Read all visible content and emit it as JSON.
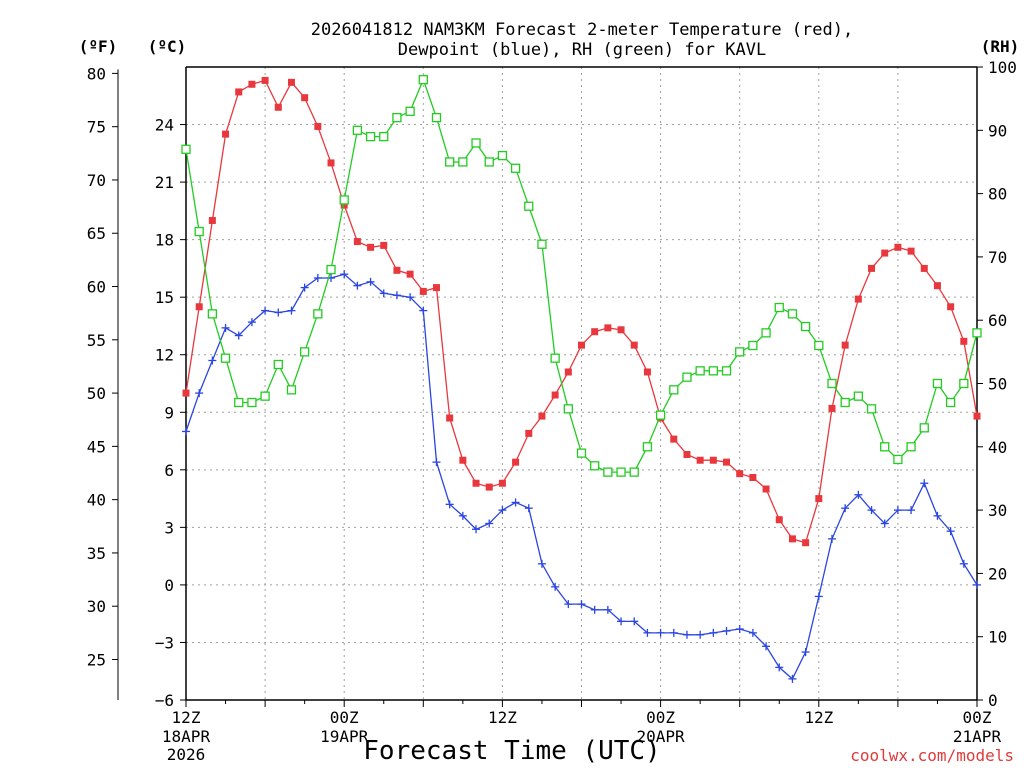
{
  "title_line1": "2026041812 NAM3KM Forecast 2-meter Temperature (red),",
  "title_line2": "Dewpoint (blue), RH (green) for KAVL",
  "unit_f": "(ºF)",
  "unit_c": "(ºC)",
  "unit_rh": "(RH)",
  "xlabel": "Forecast Time (UTC)",
  "credit": "coolwx.com/models",
  "colors": {
    "temperature": "#e8383d",
    "dewpoint": "#2b45e0",
    "rh": "#22cc22",
    "grid": "#a0a0a0"
  },
  "chart_data": {
    "type": "line",
    "x_hours_from_start": [
      0,
      1,
      2,
      3,
      4,
      5,
      6,
      7,
      8,
      9,
      10,
      11,
      12,
      13,
      14,
      15,
      16,
      17,
      18,
      19,
      20,
      21,
      22,
      23,
      24,
      25,
      26,
      27,
      28,
      29,
      30,
      31,
      32,
      33,
      34,
      35,
      36,
      37,
      38,
      39,
      40,
      41,
      42,
      43,
      44,
      45,
      46,
      47,
      48,
      49,
      50,
      51,
      52,
      53,
      54,
      55,
      56,
      57,
      58,
      59,
      60
    ],
    "xlim": [
      0,
      60
    ],
    "x_ticks": [
      {
        "hour": 0,
        "label": "12Z",
        "date": "18APR",
        "year": "2026"
      },
      {
        "hour": 12,
        "label": "00Z",
        "date": "19APR",
        "year": ""
      },
      {
        "hour": 24,
        "label": "12Z",
        "date": "",
        "year": ""
      },
      {
        "hour": 36,
        "label": "00Z",
        "date": "20APR",
        "year": ""
      },
      {
        "hour": 48,
        "label": "12Z",
        "date": "",
        "year": ""
      },
      {
        "hour": 60,
        "label": "00Z",
        "date": "21APR",
        "year": ""
      }
    ],
    "y_left_c": {
      "label": "ºC",
      "ylim": [
        -6,
        27
      ],
      "ticks": [
        -6,
        -3,
        0,
        3,
        6,
        9,
        12,
        15,
        18,
        21,
        24
      ]
    },
    "y_left_f": {
      "label": "ºF",
      "ticks": [
        25,
        30,
        35,
        40,
        45,
        50,
        55,
        60,
        65,
        70,
        75,
        80
      ]
    },
    "y_right_rh": {
      "label": "RH",
      "ylim": [
        0,
        100
      ],
      "ticks": [
        0,
        10,
        20,
        30,
        40,
        50,
        60,
        70,
        80,
        90,
        100
      ]
    },
    "series": [
      {
        "name": "2-meter Temperature",
        "units": "C",
        "color": "#e8383d",
        "marker": "filled-square",
        "values": [
          10.0,
          14.5,
          19.0,
          23.5,
          25.7,
          26.1,
          26.3,
          24.9,
          26.2,
          25.4,
          23.9,
          22.0,
          19.8,
          17.9,
          17.6,
          17.7,
          16.4,
          16.2,
          15.3,
          15.5,
          8.7,
          6.5,
          5.3,
          5.1,
          5.3,
          6.4,
          7.9,
          8.8,
          9.9,
          11.1,
          12.5,
          13.2,
          13.4,
          13.3,
          12.5,
          11.1,
          8.7,
          7.6,
          6.8,
          6.5,
          6.5,
          6.4,
          5.8,
          5.6,
          5.0,
          3.4,
          2.4,
          2.2,
          4.5,
          9.2,
          12.5,
          14.9,
          16.5,
          17.3,
          17.6,
          17.4,
          16.5,
          15.6,
          14.5,
          12.7,
          8.8
        ]
      },
      {
        "name": "Dewpoint",
        "units": "C",
        "color": "#2b45e0",
        "marker": "plus",
        "values": [
          8.0,
          10.0,
          11.7,
          13.4,
          13.0,
          13.7,
          14.3,
          14.2,
          14.3,
          15.5,
          16.0,
          16.0,
          16.2,
          15.6,
          15.8,
          15.2,
          15.1,
          15.0,
          14.3,
          6.4,
          4.2,
          3.6,
          2.9,
          3.2,
          3.9,
          4.3,
          4.0,
          1.1,
          -0.1,
          -1.0,
          -1.0,
          -1.3,
          -1.3,
          -1.9,
          -1.9,
          -2.5,
          -2.5,
          -2.5,
          -2.6,
          -2.6,
          -2.5,
          -2.4,
          -2.3,
          -2.5,
          -3.2,
          -4.3,
          -4.9,
          -3.5,
          -0.6,
          2.4,
          4.0,
          4.7,
          3.9,
          3.2,
          3.9,
          3.9,
          5.3,
          3.6,
          2.8,
          1.1,
          0.0
        ]
      },
      {
        "name": "Relative Humidity",
        "units": "%",
        "color": "#22cc22",
        "marker": "open-square",
        "values": [
          87,
          74,
          61,
          54,
          47,
          47,
          48,
          53,
          49,
          55,
          61,
          68,
          79,
          90,
          89,
          89,
          92,
          93,
          98,
          92,
          85,
          85,
          88,
          85,
          86,
          84,
          78,
          72,
          54,
          46,
          39,
          37,
          36,
          36,
          36,
          40,
          45,
          49,
          51,
          52,
          52,
          52,
          55,
          56,
          58,
          62,
          61,
          59,
          56,
          50,
          47,
          48,
          46,
          40,
          38,
          40,
          43,
          50,
          47,
          50,
          58
        ]
      }
    ]
  }
}
